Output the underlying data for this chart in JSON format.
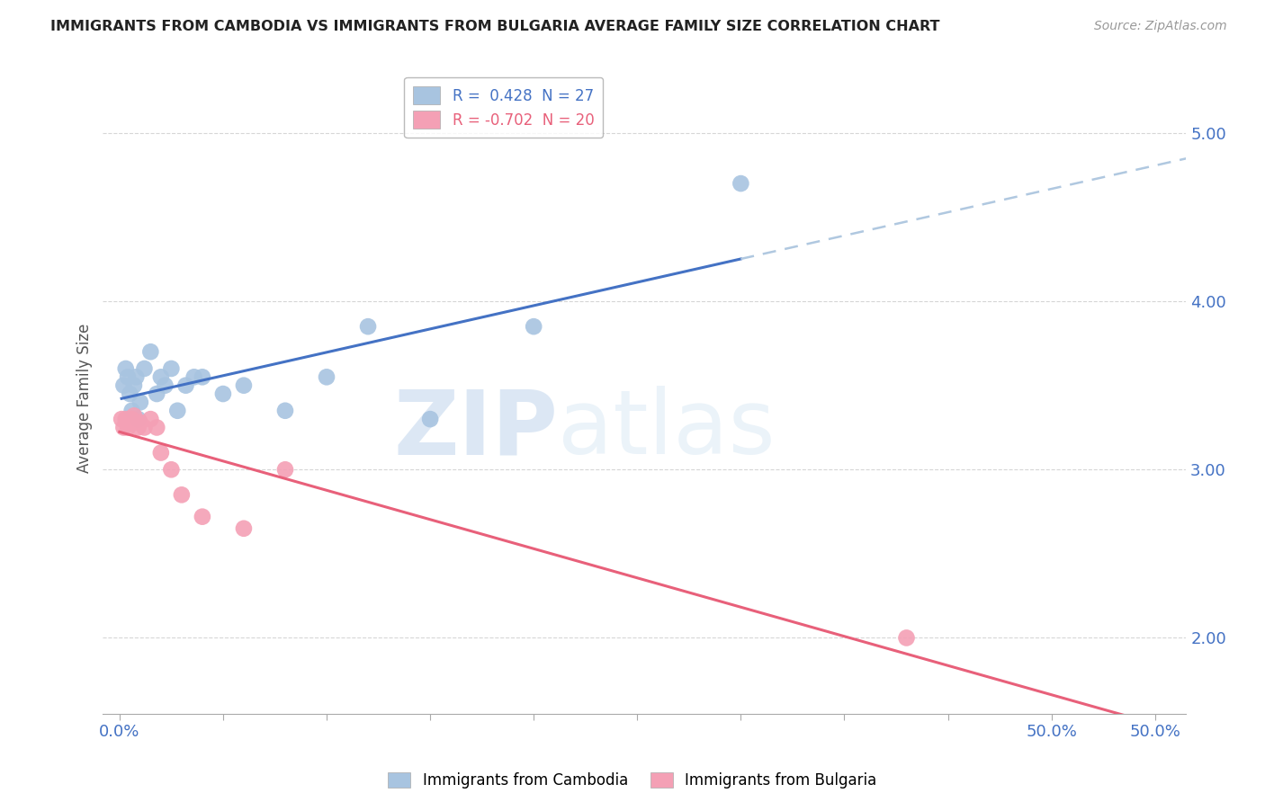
{
  "title": "IMMIGRANTS FROM CAMBODIA VS IMMIGRANTS FROM BULGARIA AVERAGE FAMILY SIZE CORRELATION CHART",
  "source": "Source: ZipAtlas.com",
  "ylabel": "Average Family Size",
  "ylim": [
    1.55,
    5.3
  ],
  "xlim": [
    -0.008,
    0.515
  ],
  "yticks": [
    2.0,
    3.0,
    4.0,
    5.0
  ],
  "xticks": [
    0.0,
    0.05,
    0.1,
    0.15,
    0.2,
    0.25,
    0.3,
    0.35,
    0.4,
    0.45,
    0.5
  ],
  "xtick_labels_show": {
    "0.0": "0.0%",
    "0.5": "50.0%"
  },
  "watermark_zip": "ZIP",
  "watermark_atlas": "atlas",
  "legend1_label": "R =  0.428  N = 27",
  "legend2_label": "R = -0.702  N = 20",
  "series1_color": "#a8c4e0",
  "series2_color": "#f4a0b5",
  "line1_color": "#4472c4",
  "line2_color": "#e8607a",
  "dashed_color": "#b0c8e0",
  "cambodia_x": [
    0.002,
    0.003,
    0.004,
    0.005,
    0.006,
    0.007,
    0.008,
    0.009,
    0.01,
    0.012,
    0.015,
    0.018,
    0.02,
    0.022,
    0.025,
    0.028,
    0.032,
    0.036,
    0.04,
    0.05,
    0.06,
    0.08,
    0.1,
    0.12,
    0.15,
    0.2,
    0.3
  ],
  "cambodia_y": [
    3.5,
    3.6,
    3.55,
    3.45,
    3.35,
    3.5,
    3.55,
    3.3,
    3.4,
    3.6,
    3.7,
    3.45,
    3.55,
    3.5,
    3.6,
    3.35,
    3.5,
    3.55,
    3.55,
    3.45,
    3.5,
    3.35,
    3.55,
    3.85,
    3.3,
    3.85,
    4.7
  ],
  "bulgaria_x": [
    0.001,
    0.002,
    0.003,
    0.004,
    0.005,
    0.006,
    0.007,
    0.008,
    0.009,
    0.01,
    0.012,
    0.015,
    0.018,
    0.02,
    0.025,
    0.03,
    0.04,
    0.06,
    0.08,
    0.38
  ],
  "bulgaria_y": [
    3.3,
    3.25,
    3.3,
    3.25,
    3.28,
    3.3,
    3.32,
    3.28,
    3.25,
    3.28,
    3.25,
    3.3,
    3.25,
    3.1,
    3.0,
    2.85,
    2.72,
    2.65,
    3.0,
    2.0
  ],
  "cam_line_start_x": 0.001,
  "cam_line_end_solid": 0.3,
  "cam_line_end_dash": 0.515,
  "bul_line_start_x": 0.0,
  "bul_line_end_x": 0.515
}
